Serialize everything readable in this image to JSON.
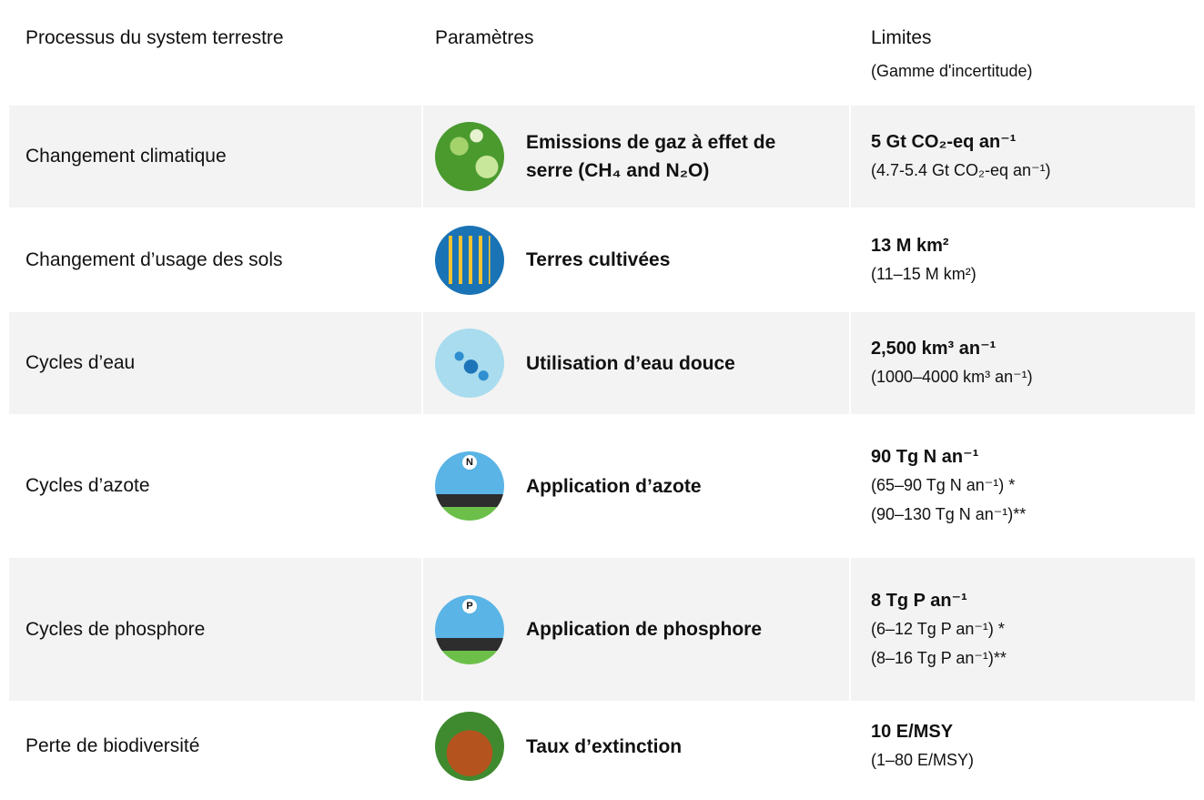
{
  "header": {
    "process": "Processus du system terrestre",
    "parameter": "Paramètres",
    "limit": "Limites",
    "range": "(Gamme d'incertitude)"
  },
  "rows": [
    {
      "process": "Changement climatique",
      "parameter": "Emissions de gaz à effet de serre (CH₄ and N₂O)",
      "limit": "5 Gt CO₂-eq an⁻¹",
      "range": [
        "(4.7-5.4 Gt CO₂-eq an⁻¹)"
      ]
    },
    {
      "process": "Changement d’usage des sols",
      "parameter": "Terres cultivées",
      "limit": "13 M km²",
      "range": [
        "(11–15 M km²)"
      ]
    },
    {
      "process": "Cycles d’eau",
      "parameter": "Utilisation d’eau douce",
      "limit": "2,500 km³ an⁻¹",
      "range": [
        "(1000–4000 km³ an⁻¹)"
      ]
    },
    {
      "process": "Cycles d’azote",
      "parameter": "Application d’azote",
      "icon_label": "N",
      "limit": "90 Tg N an⁻¹",
      "range": [
        "(65–90 Tg N an⁻¹) *",
        "(90–130 Tg N an⁻¹)**"
      ]
    },
    {
      "process": "Cycles de phosphore",
      "parameter": "Application de phosphore",
      "icon_label": "P",
      "limit": "8 Tg P an⁻¹",
      "range": [
        "(6–12 Tg P an⁻¹) *",
        "(8–16 Tg P an⁻¹)**"
      ]
    },
    {
      "process": "Perte de biodiversité",
      "parameter": "Taux d’extinction",
      "limit": "10 E/MSY",
      "range": [
        "(1–80 E/MSY)"
      ]
    }
  ]
}
